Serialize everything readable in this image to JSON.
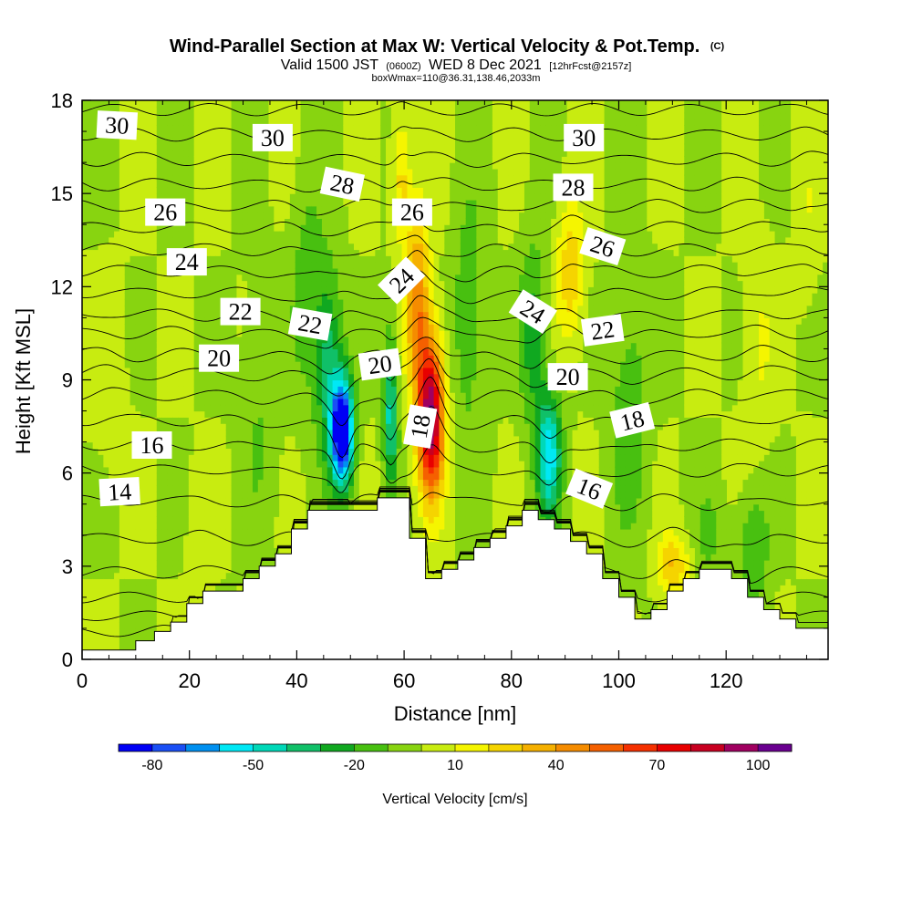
{
  "header": {
    "title": "Wind-Parallel Section at Max W: Vertical Velocity & Pot.Temp.",
    "copyright": "(C)",
    "valid_prefix": "Valid 1500 JST",
    "valid_utc": "(0600Z)",
    "valid_date": "WED 8 Dec 2021",
    "forecast": "[12hrFcst@2157z]",
    "box_info": "boxWmax=110@36.31,138.46,2033m"
  },
  "chart_data": {
    "type": "heatmap",
    "xlabel": "Distance [nm]",
    "ylabel": "Height [Kft MSL]",
    "xlim": [
      0,
      139
    ],
    "ylim": [
      0,
      18
    ],
    "x_ticks": [
      0,
      20,
      40,
      60,
      80,
      100,
      120
    ],
    "y_ticks": [
      0,
      3,
      6,
      9,
      12,
      15,
      18
    ],
    "colorbar": {
      "label": "Vertical Velocity [cm/s]",
      "tick_labels": [
        "-80",
        "-50",
        "-20",
        "10",
        "40",
        "70",
        "100"
      ],
      "tick_values": [
        -80,
        -50,
        -20,
        10,
        40,
        70,
        100
      ],
      "min": -85,
      "max": 115,
      "step": 10,
      "colors": [
        "#0000f5",
        "#1a4ff5",
        "#0090f0",
        "#00e8f5",
        "#00d8b8",
        "#10c068",
        "#10a820",
        "#48c010",
        "#88d410",
        "#c8ec10",
        "#f5f500",
        "#f5d400",
        "#f5b000",
        "#f58c00",
        "#f56000",
        "#f53000",
        "#e80000",
        "#c80020",
        "#a00060",
        "#6a0090"
      ]
    },
    "background_velocity": 5,
    "velocity_features": [
      {
        "x": 65,
        "y": 7.8,
        "sx": 2.4,
        "sy": 2.5,
        "amp": 100
      },
      {
        "x": 62.5,
        "y": 11.5,
        "sx": 2.2,
        "sy": 3.0,
        "amp": 45
      },
      {
        "x": 59.5,
        "y": 15.5,
        "sx": 1.6,
        "sy": 2.0,
        "amp": 25
      },
      {
        "x": 48.5,
        "y": 7.3,
        "sx": 2.0,
        "sy": 1.7,
        "amp": -105
      },
      {
        "x": 46,
        "y": 9.5,
        "sx": 2.5,
        "sy": 3.0,
        "amp": -35
      },
      {
        "x": 57.5,
        "y": 8.0,
        "sx": 1.3,
        "sy": 2.5,
        "amp": -45
      },
      {
        "x": 87,
        "y": 6.6,
        "sx": 2.3,
        "sy": 2.0,
        "amp": -55
      },
      {
        "x": 84,
        "y": 10.5,
        "sx": 2.5,
        "sy": 3.0,
        "amp": -25
      },
      {
        "x": 91,
        "y": 12.5,
        "sx": 2.5,
        "sy": 2.2,
        "amp": 28
      },
      {
        "x": 72,
        "y": 11,
        "sx": 3.0,
        "sy": 4.0,
        "amp": -18
      },
      {
        "x": 42,
        "y": 12,
        "sx": 3.0,
        "sy": 3.5,
        "amp": -16
      },
      {
        "x": 33,
        "y": 8,
        "sx": 3.5,
        "sy": 4.0,
        "amp": -10
      },
      {
        "x": 102,
        "y": 8,
        "sx": 3.5,
        "sy": 4.0,
        "amp": -18
      },
      {
        "x": 110,
        "y": 3,
        "sx": 3.0,
        "sy": 1.0,
        "amp": 30
      },
      {
        "x": 117,
        "y": 4,
        "sx": 3.0,
        "sy": 1.5,
        "amp": -12
      },
      {
        "x": 125,
        "y": 3.5,
        "sx": 3.0,
        "sy": 2.0,
        "amp": -20
      },
      {
        "x": 126,
        "y": 10,
        "sx": 3.0,
        "sy": 3.5,
        "amp": 10
      },
      {
        "x": 135,
        "y": 14,
        "sx": 2.0,
        "sy": 3.0,
        "amp": 8
      },
      {
        "x": 5,
        "y": 9,
        "sx": 3.0,
        "sy": 3.0,
        "amp": 7
      },
      {
        "x": 22,
        "y": 4,
        "sx": 2.5,
        "sy": 2.0,
        "amp": 6
      }
    ],
    "terrain": [
      {
        "x": 0,
        "y": 0.3
      },
      {
        "x": 10,
        "y": 0.3
      },
      {
        "x": 10,
        "y": 0.6
      },
      {
        "x": 13.5,
        "y": 0.6
      },
      {
        "x": 13.5,
        "y": 0.9
      },
      {
        "x": 16.5,
        "y": 0.9
      },
      {
        "x": 16.5,
        "y": 1.2
      },
      {
        "x": 19.5,
        "y": 1.2
      },
      {
        "x": 19.5,
        "y": 1.8
      },
      {
        "x": 22.5,
        "y": 1.8
      },
      {
        "x": 22.5,
        "y": 2.2
      },
      {
        "x": 30,
        "y": 2.2
      },
      {
        "x": 30,
        "y": 2.6
      },
      {
        "x": 33,
        "y": 2.6
      },
      {
        "x": 33,
        "y": 3.0
      },
      {
        "x": 36,
        "y": 3.0
      },
      {
        "x": 36,
        "y": 3.4
      },
      {
        "x": 39,
        "y": 3.4
      },
      {
        "x": 39,
        "y": 4.2
      },
      {
        "x": 42,
        "y": 4.2
      },
      {
        "x": 42,
        "y": 4.8
      },
      {
        "x": 55,
        "y": 4.8
      },
      {
        "x": 55,
        "y": 5.2
      },
      {
        "x": 61,
        "y": 5.2
      },
      {
        "x": 61,
        "y": 3.9
      },
      {
        "x": 64,
        "y": 3.9
      },
      {
        "x": 64,
        "y": 2.6
      },
      {
        "x": 67,
        "y": 2.6
      },
      {
        "x": 67,
        "y": 2.9
      },
      {
        "x": 70,
        "y": 2.9
      },
      {
        "x": 70,
        "y": 3.2
      },
      {
        "x": 73,
        "y": 3.2
      },
      {
        "x": 73,
        "y": 3.6
      },
      {
        "x": 76,
        "y": 3.6
      },
      {
        "x": 76,
        "y": 3.9
      },
      {
        "x": 79,
        "y": 3.9
      },
      {
        "x": 79,
        "y": 4.3
      },
      {
        "x": 82,
        "y": 4.3
      },
      {
        "x": 82,
        "y": 4.8
      },
      {
        "x": 85,
        "y": 4.8
      },
      {
        "x": 85,
        "y": 4.5
      },
      {
        "x": 88,
        "y": 4.5
      },
      {
        "x": 88,
        "y": 4.2
      },
      {
        "x": 91,
        "y": 4.2
      },
      {
        "x": 91,
        "y": 3.8
      },
      {
        "x": 94,
        "y": 3.8
      },
      {
        "x": 94,
        "y": 3.4
      },
      {
        "x": 97,
        "y": 3.4
      },
      {
        "x": 97,
        "y": 2.6
      },
      {
        "x": 100,
        "y": 2.6
      },
      {
        "x": 100,
        "y": 2.0
      },
      {
        "x": 103,
        "y": 2.0
      },
      {
        "x": 103,
        "y": 1.3
      },
      {
        "x": 106,
        "y": 1.3
      },
      {
        "x": 106,
        "y": 1.6
      },
      {
        "x": 109,
        "y": 1.6
      },
      {
        "x": 109,
        "y": 2.2
      },
      {
        "x": 112,
        "y": 2.2
      },
      {
        "x": 112,
        "y": 2.6
      },
      {
        "x": 115,
        "y": 2.6
      },
      {
        "x": 115,
        "y": 2.9
      },
      {
        "x": 121,
        "y": 2.9
      },
      {
        "x": 121,
        "y": 2.6
      },
      {
        "x": 124,
        "y": 2.6
      },
      {
        "x": 124,
        "y": 2.0
      },
      {
        "x": 127,
        "y": 2.0
      },
      {
        "x": 127,
        "y": 1.6
      },
      {
        "x": 130,
        "y": 1.6
      },
      {
        "x": 130,
        "y": 1.3
      },
      {
        "x": 133,
        "y": 1.3
      },
      {
        "x": 133,
        "y": 1.0
      },
      {
        "x": 136,
        "y": 1.0
      },
      {
        "x": 136,
        "y": 1.0
      },
      {
        "x": 139,
        "y": 1.0
      }
    ],
    "theta_contours": {
      "interval_k": 1,
      "first_k": 9,
      "last_k": 31,
      "levels": [
        {
          "k": 9,
          "y": 0.9
        },
        {
          "k": 10,
          "y": 1.4
        },
        {
          "k": 11,
          "y": 2.0
        },
        {
          "k": 12,
          "y": 2.8
        },
        {
          "k": 13,
          "y": 3.9
        },
        {
          "k": 14,
          "y": 5.1
        },
        {
          "k": 15,
          "y": 6.1
        },
        {
          "k": 16,
          "y": 6.9
        },
        {
          "k": 17,
          "y": 7.7
        },
        {
          "k": 18,
          "y": 8.5
        },
        {
          "k": 19,
          "y": 9.2
        },
        {
          "k": 20,
          "y": 9.8
        },
        {
          "k": 21,
          "y": 10.5
        },
        {
          "k": 22,
          "y": 11.1
        },
        {
          "k": 23,
          "y": 11.8
        },
        {
          "k": 24,
          "y": 12.5
        },
        {
          "k": 25,
          "y": 13.2
        },
        {
          "k": 26,
          "y": 13.9
        },
        {
          "k": 27,
          "y": 14.6
        },
        {
          "k": 28,
          "y": 15.3
        },
        {
          "k": 29,
          "y": 16.1
        },
        {
          "k": 30,
          "y": 16.9
        },
        {
          "k": 31,
          "y": 17.7
        }
      ]
    },
    "contour_labels": [
      {
        "text": "30",
        "x": 6.5,
        "y": 17.2,
        "rot": 3
      },
      {
        "text": "30",
        "x": 35.5,
        "y": 16.8,
        "rot": 0
      },
      {
        "text": "30",
        "x": 93.5,
        "y": 16.8,
        "rot": 0
      },
      {
        "text": "28",
        "x": 48.5,
        "y": 15.3,
        "rot": 12
      },
      {
        "text": "28",
        "x": 91.5,
        "y": 15.2,
        "rot": 0
      },
      {
        "text": "26",
        "x": 15.5,
        "y": 14.4,
        "rot": 0
      },
      {
        "text": "26",
        "x": 61.5,
        "y": 14.4,
        "rot": 0
      },
      {
        "text": "26",
        "x": 97,
        "y": 13.3,
        "rot": 18
      },
      {
        "text": "24",
        "x": 19.5,
        "y": 12.8,
        "rot": 0
      },
      {
        "text": "24",
        "x": 59.5,
        "y": 12.2,
        "rot": -45
      },
      {
        "text": "24",
        "x": 84,
        "y": 11.2,
        "rot": 32
      },
      {
        "text": "22",
        "x": 29.5,
        "y": 11.2,
        "rot": 0
      },
      {
        "text": "22",
        "x": 42.5,
        "y": 10.8,
        "rot": 10
      },
      {
        "text": "22",
        "x": 97,
        "y": 10.6,
        "rot": -8
      },
      {
        "text": "20",
        "x": 25.5,
        "y": 9.7,
        "rot": 0
      },
      {
        "text": "20",
        "x": 55.5,
        "y": 9.5,
        "rot": -8
      },
      {
        "text": "20",
        "x": 90.5,
        "y": 9.1,
        "rot": 0
      },
      {
        "text": "18",
        "x": 63,
        "y": 7.5,
        "rot": -80
      },
      {
        "text": "18",
        "x": 102.5,
        "y": 7.7,
        "rot": -14
      },
      {
        "text": "16",
        "x": 13,
        "y": 6.9,
        "rot": 0
      },
      {
        "text": "16",
        "x": 94.5,
        "y": 5.5,
        "rot": 22
      },
      {
        "text": "14",
        "x": 7,
        "y": 5.4,
        "rot": -3
      }
    ]
  }
}
